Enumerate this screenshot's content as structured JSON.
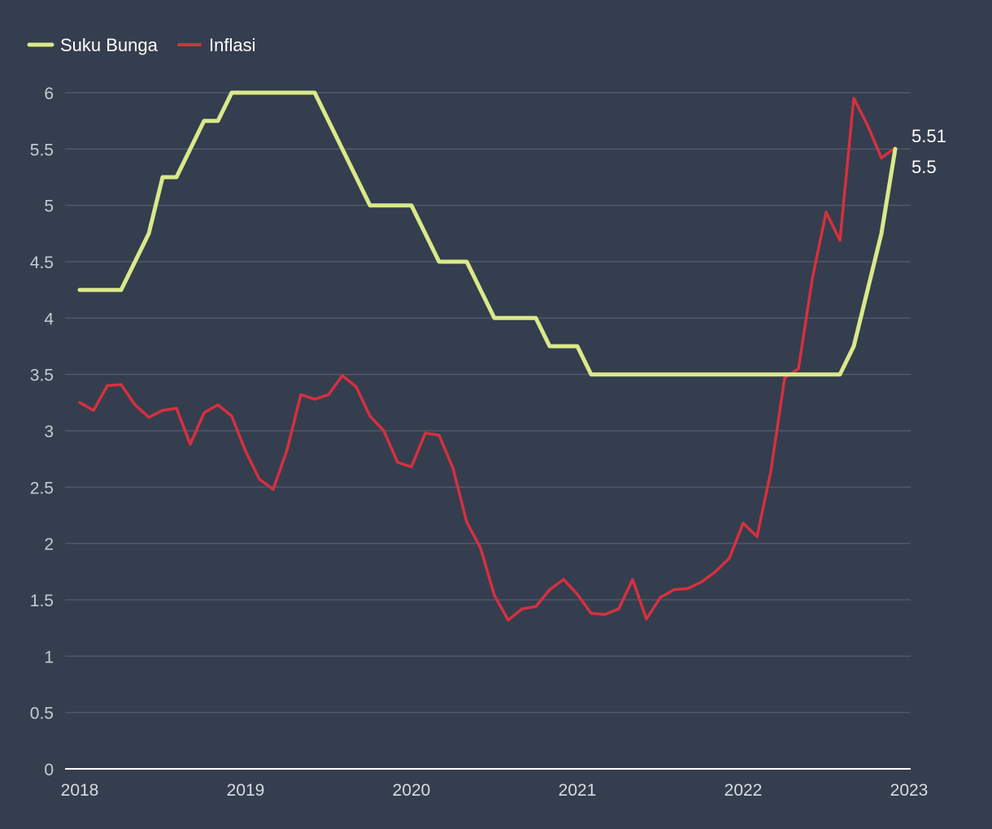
{
  "colors": {
    "background": "#343e4e",
    "grid": "#4f5969",
    "axis": "#ffffff",
    "suku_bunga": "#d9e98a",
    "inflasi": "#d6303f"
  },
  "chart_data": {
    "type": "line",
    "title": "",
    "xlabel": "",
    "ylabel": "",
    "ylim": [
      0,
      6
    ],
    "y_ticks": [
      "0",
      "0.5",
      "1",
      "1.5",
      "2",
      "2.5",
      "3",
      "3.5",
      "4",
      "4.5",
      "5",
      "5.5",
      "6"
    ],
    "x_ticks": [
      "2018",
      "2019",
      "2020",
      "2021",
      "2022",
      "2023"
    ],
    "x_range": [
      "2018-01",
      "2023-01"
    ],
    "grid": true,
    "legend_position": "top-left",
    "months": [
      "2018-01",
      "2018-02",
      "2018-03",
      "2018-04",
      "2018-05",
      "2018-06",
      "2018-07",
      "2018-08",
      "2018-09",
      "2018-10",
      "2018-11",
      "2018-12",
      "2019-01",
      "2019-02",
      "2019-03",
      "2019-04",
      "2019-05",
      "2019-06",
      "2019-07",
      "2019-08",
      "2019-09",
      "2019-10",
      "2019-11",
      "2019-12",
      "2020-01",
      "2020-02",
      "2020-03",
      "2020-04",
      "2020-05",
      "2020-06",
      "2020-07",
      "2020-08",
      "2020-09",
      "2020-10",
      "2020-11",
      "2020-12",
      "2021-01",
      "2021-02",
      "2021-03",
      "2021-04",
      "2021-05",
      "2021-06",
      "2021-07",
      "2021-08",
      "2021-09",
      "2021-10",
      "2021-11",
      "2021-12",
      "2022-01",
      "2022-02",
      "2022-03",
      "2022-04",
      "2022-05",
      "2022-06",
      "2022-07",
      "2022-08",
      "2022-09",
      "2022-10",
      "2022-11",
      "2022-12"
    ],
    "series": [
      {
        "name": "Suku Bunga",
        "color": "#d9e98a",
        "end_label": "5.5",
        "values": [
          4.25,
          4.25,
          4.25,
          4.25,
          4.5,
          4.75,
          5.25,
          5.25,
          5.5,
          5.75,
          5.75,
          6,
          6,
          6,
          6,
          6,
          6,
          6,
          5.75,
          5.5,
          5.25,
          5,
          5,
          5,
          5,
          4.75,
          4.5,
          4.5,
          4.5,
          4.25,
          4,
          4,
          4,
          4,
          3.75,
          3.75,
          3.75,
          3.5,
          3.5,
          3.5,
          3.5,
          3.5,
          3.5,
          3.5,
          3.5,
          3.5,
          3.5,
          3.5,
          3.5,
          3.5,
          3.5,
          3.5,
          3.5,
          3.5,
          3.5,
          3.5,
          3.75,
          4.25,
          4.75,
          5.5
        ]
      },
      {
        "name": "Inflasi",
        "color": "#d6303f",
        "end_label": "5.51",
        "values": [
          3.25,
          3.18,
          3.4,
          3.41,
          3.23,
          3.12,
          3.18,
          3.2,
          2.88,
          3.16,
          3.23,
          3.13,
          2.82,
          2.57,
          2.48,
          2.83,
          3.32,
          3.28,
          3.32,
          3.49,
          3.39,
          3.13,
          3.0,
          2.72,
          2.68,
          2.98,
          2.96,
          2.67,
          2.19,
          1.96,
          1.54,
          1.32,
          1.42,
          1.44,
          1.59,
          1.68,
          1.55,
          1.38,
          1.37,
          1.42,
          1.68,
          1.33,
          1.52,
          1.59,
          1.6,
          1.66,
          1.75,
          1.87,
          2.18,
          2.06,
          2.64,
          3.47,
          3.55,
          4.35,
          4.94,
          4.69,
          5.95,
          5.71,
          5.42,
          5.51
        ]
      }
    ]
  }
}
